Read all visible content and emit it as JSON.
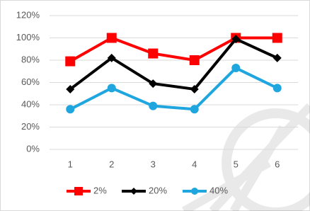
{
  "chart_data": {
    "type": "line",
    "categories": [
      "1",
      "2",
      "3",
      "4",
      "5",
      "6"
    ],
    "series": [
      {
        "name": "2%",
        "color": "#ff0000",
        "marker": "square",
        "values": [
          79,
          100,
          86,
          80,
          100,
          100
        ]
      },
      {
        "name": "20%",
        "color": "#000000",
        "marker": "diamond",
        "values": [
          54,
          82,
          59,
          54,
          99,
          82
        ]
      },
      {
        "name": "40%",
        "color": "#1fa6de",
        "marker": "circle",
        "values": [
          36,
          55,
          39,
          36,
          73,
          55
        ]
      }
    ],
    "ylim": [
      0,
      120
    ],
    "yticks": [
      {
        "value": 0,
        "label": "0%"
      },
      {
        "value": 20,
        "label": "20%"
      },
      {
        "value": 40,
        "label": "40%"
      },
      {
        "value": 60,
        "label": "60%"
      },
      {
        "value": 80,
        "label": "80%"
      },
      {
        "value": 100,
        "label": "100%"
      },
      {
        "value": 120,
        "label": "120%"
      }
    ],
    "grid": true,
    "legend": "bottom"
  }
}
